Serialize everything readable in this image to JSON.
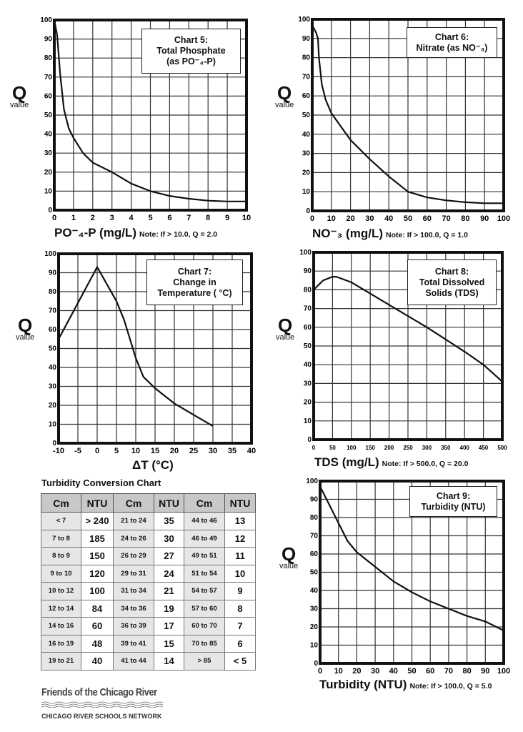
{
  "chart_data": [
    {
      "type": "line",
      "title": [
        "Chart 5:",
        "Total Phosphate",
        "(as PO⁻₄-P)"
      ],
      "xlabel": "PO⁻₄-P (mg/L)",
      "note": "Note: If > 10.0, Q = 2.0",
      "ylabel": "Q",
      "ylabel_sub": "value",
      "xlim": [
        0,
        10
      ],
      "ylim": [
        0,
        100
      ],
      "grid": true,
      "xticks": [
        "0",
        "1",
        "2",
        "3",
        "4",
        "5",
        "6",
        "7",
        "8",
        "9",
        "10"
      ],
      "yticks": [
        "0",
        "10",
        "20",
        "30",
        "40",
        "50",
        "60",
        "70",
        "80",
        "90",
        "100"
      ],
      "x": [
        0,
        0.15,
        0.3,
        0.5,
        0.75,
        1,
        1.5,
        2,
        3,
        4,
        5,
        6,
        7,
        8,
        9,
        10
      ],
      "y": [
        100,
        92,
        72,
        53,
        43,
        38,
        30,
        25,
        20,
        14,
        10,
        7.5,
        6,
        5,
        4.6,
        4.6
      ]
    },
    {
      "type": "line",
      "title": [
        "Chart 6:",
        "Nitrate (as NO⁻₃)"
      ],
      "xlabel": "NO⁻₃ (mg/L)",
      "note": "Note: If > 100.0, Q = 1.0",
      "ylabel": "Q",
      "ylabel_sub": "value",
      "xlim": [
        0,
        100
      ],
      "ylim": [
        0,
        100
      ],
      "grid": true,
      "xticks": [
        "0",
        "10",
        "20",
        "30",
        "40",
        "50",
        "60",
        "70",
        "80",
        "90",
        "100"
      ],
      "yticks": [
        "0",
        "10",
        "20",
        "30",
        "40",
        "50",
        "60",
        "70",
        "80",
        "90",
        "100"
      ],
      "x": [
        0,
        2,
        3,
        3.5,
        5,
        7,
        10,
        15,
        20,
        30,
        40,
        50,
        60,
        70,
        80,
        90,
        100
      ],
      "y": [
        97,
        93,
        90,
        80,
        66,
        58,
        51,
        44,
        37,
        27,
        18,
        10,
        7,
        5.5,
        4.5,
        4,
        4
      ]
    },
    {
      "type": "line",
      "title": [
        "Chart 7:",
        "Change in",
        "Temperature ( °C)"
      ],
      "xlabel": "ΔT (°C)",
      "note": "",
      "ylabel": "Q",
      "ylabel_sub": "value",
      "xlim": [
        -10,
        40
      ],
      "ylim": [
        0,
        100
      ],
      "grid": true,
      "xticks": [
        "-10",
        "-5",
        "0",
        "5",
        "10",
        "15",
        "20",
        "25",
        "30",
        "35",
        "40"
      ],
      "yticks": [
        "0",
        "10",
        "20",
        "30",
        "40",
        "50",
        "60",
        "70",
        "80",
        "90",
        "100"
      ],
      "x": [
        -10,
        0,
        5,
        7,
        10,
        12,
        15,
        20,
        25,
        30
      ],
      "y": [
        55,
        93,
        75,
        65,
        45,
        35,
        29,
        21,
        15,
        9
      ]
    },
    {
      "type": "line",
      "title": [
        "Chart 8:",
        "Total Dissolved",
        "Solids (TDS)"
      ],
      "xlabel": "TDS (mg/L)",
      "note": "Note: If > 500.0, Q = 20.0",
      "ylabel": "Q",
      "ylabel_sub": "value",
      "xlim": [
        0,
        500
      ],
      "ylim": [
        0,
        100
      ],
      "grid": true,
      "xticks": [
        "0",
        "50",
        "100",
        "150",
        "200",
        "250",
        "300",
        "350",
        "400",
        "450",
        "500"
      ],
      "yticks": [
        "0",
        "10",
        "20",
        "30",
        "40",
        "50",
        "60",
        "70",
        "80",
        "90",
        "100"
      ],
      "x": [
        0,
        25,
        50,
        60,
        100,
        200,
        300,
        400,
        450,
        500
      ],
      "y": [
        80,
        85,
        87,
        87,
        84,
        72,
        60,
        47,
        40,
        31
      ]
    },
    {
      "type": "line",
      "title": [
        "Chart 9:",
        "Turbidity (NTU)"
      ],
      "xlabel": "Turbidity (NTU)",
      "note": "Note: If > 100.0, Q = 5.0",
      "ylabel": "Q",
      "ylabel_sub": "value",
      "xlim": [
        0,
        100
      ],
      "ylim": [
        0,
        100
      ],
      "grid": true,
      "xticks": [
        "0",
        "10",
        "20",
        "30",
        "40",
        "50",
        "60",
        "70",
        "80",
        "90",
        "100"
      ],
      "yticks": [
        "0",
        "10",
        "20",
        "30",
        "40",
        "50",
        "60",
        "70",
        "80",
        "90",
        "100"
      ],
      "x": [
        0,
        5,
        10,
        15,
        20,
        30,
        40,
        50,
        60,
        70,
        80,
        90,
        100
      ],
      "y": [
        97,
        87,
        77,
        67,
        61,
        53,
        45,
        39,
        34,
        30,
        26,
        23,
        18
      ]
    }
  ],
  "turbidity_table": {
    "title": "Turbidity Conversion Chart",
    "headers": [
      "Cm",
      "NTU",
      "Cm",
      "NTU",
      "Cm",
      "NTU"
    ],
    "rows": [
      [
        "< 7",
        "> 240",
        "21 to 24",
        "35",
        "44 to 46",
        "13"
      ],
      [
        "7 to 8",
        "185",
        "24 to 26",
        "30",
        "46 to 49",
        "12"
      ],
      [
        "8 to 9",
        "150",
        "26 to 29",
        "27",
        "49 to 51",
        "11"
      ],
      [
        "9 to 10",
        "120",
        "29 to 31",
        "24",
        "51 to 54",
        "10"
      ],
      [
        "10 to 12",
        "100",
        "31 to 34",
        "21",
        "54 to 57",
        "9"
      ],
      [
        "12 to 14",
        "84",
        "34 to 36",
        "19",
        "57 to 60",
        "8"
      ],
      [
        "14 to 16",
        "60",
        "36 to 39",
        "17",
        "60 to 70",
        "7"
      ],
      [
        "16 to 19",
        "48",
        "39 to 41",
        "15",
        "70 to 85",
        "6"
      ],
      [
        "19 to 21",
        "40",
        "41 to 44",
        "14",
        "> 85",
        "< 5"
      ]
    ]
  },
  "logo": {
    "line1": "Friends of the Chicago River",
    "line2": "CHICAGO RIVER SCHOOLS NETWORK"
  }
}
